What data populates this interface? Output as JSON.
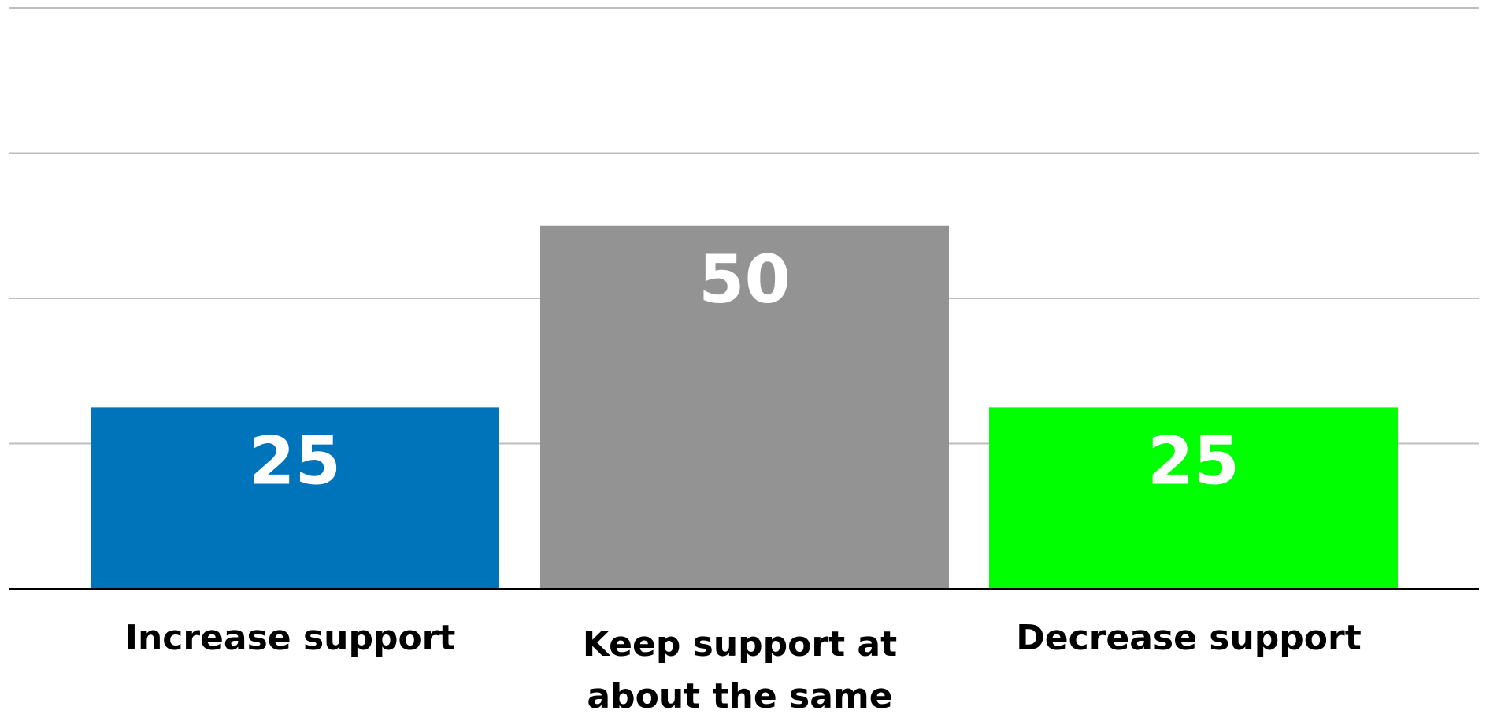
{
  "chart_data": {
    "type": "bar",
    "categories": [
      "Increase support",
      "Keep support at about the same",
      "Decrease support"
    ],
    "category_label_lines": [
      [
        "Increase support"
      ],
      [
        "Keep support at",
        "about the same"
      ],
      [
        "Decrease support"
      ]
    ],
    "values": [
      25,
      50,
      25
    ],
    "data_labels": [
      "25",
      "50",
      "25"
    ],
    "colors": [
      "#0074bb",
      "#939393",
      "#00ff00"
    ],
    "title": "",
    "xlabel": "",
    "ylabel": "",
    "ylim": [
      0,
      80
    ],
    "grid": true,
    "gridline_values": [
      0,
      20,
      40,
      60,
      80
    ],
    "legend": "none"
  }
}
